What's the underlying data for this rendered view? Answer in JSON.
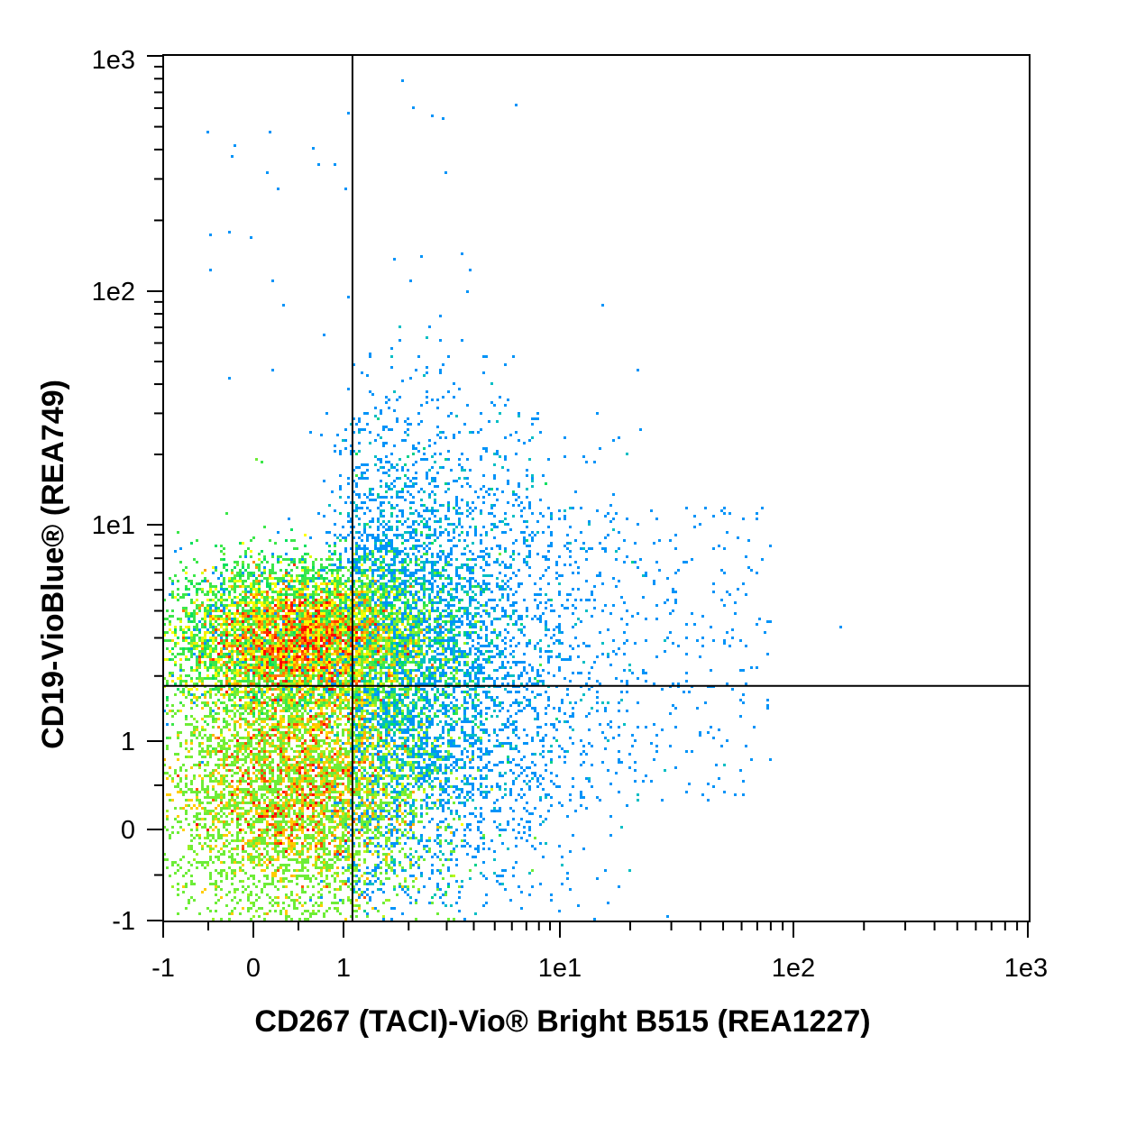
{
  "chart_data": {
    "type": "scatter",
    "subtype": "flow-cytometry-density-dot-plot",
    "xlabel": "CD267 (TACI)-Vio® Bright B515 (REA1227)",
    "ylabel": "CD19-VioBlue® (REA749)",
    "x_scale": "biexponential",
    "y_scale": "biexponential",
    "xlim": [
      -1,
      1000
    ],
    "ylim": [
      -1,
      1000
    ],
    "x_ticks": [
      {
        "value": -1,
        "label": "-1"
      },
      {
        "value": 0,
        "label": "0"
      },
      {
        "value": 1,
        "label": "1"
      },
      {
        "value": 10,
        "label": "1e1"
      },
      {
        "value": 100,
        "label": "1e2"
      },
      {
        "value": 1000,
        "label": "1e3"
      }
    ],
    "y_ticks": [
      {
        "value": -1,
        "label": "-1"
      },
      {
        "value": 0,
        "label": "0"
      },
      {
        "value": 1,
        "label": "1"
      },
      {
        "value": 10,
        "label": "1e1"
      },
      {
        "value": 100,
        "label": "1e2"
      },
      {
        "value": 1000,
        "label": "1e3"
      }
    ],
    "quadrant_gate": {
      "x": 1.1,
      "y": 1.8
    },
    "populations": [
      {
        "center": [
          0.6,
          3.0
        ],
        "density": "high"
      },
      {
        "center": [
          0.3,
          0.5
        ],
        "density": "medium"
      }
    ],
    "color_scale": [
      "#0000cc",
      "#00aaff",
      "#00e060",
      "#ffff00",
      "#ff0000"
    ],
    "grid": false,
    "legend": "none"
  }
}
